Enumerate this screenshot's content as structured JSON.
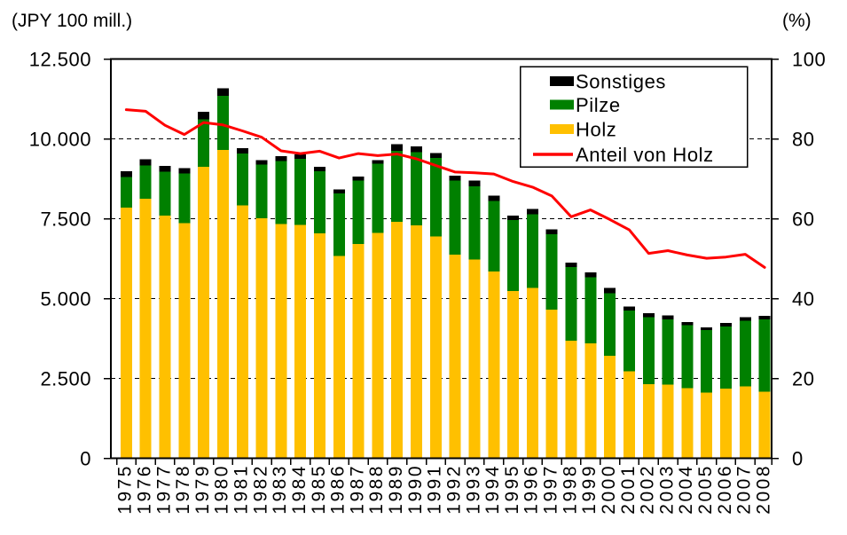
{
  "chart_data": {
    "type": "bar",
    "subtype": "stacked-bars-with-line-overlay",
    "title": "",
    "categories": [
      "1975",
      "1976",
      "1977",
      "1978",
      "1979",
      "1980",
      "1981",
      "1982",
      "1983",
      "1984",
      "1985",
      "1986",
      "1987",
      "1988",
      "1989",
      "1990",
      "1991",
      "1992",
      "1993",
      "1994",
      "1995",
      "1996",
      "1997",
      "1998",
      "1999",
      "2000",
      "2001",
      "2002",
      "2003",
      "2004",
      "2005",
      "2006",
      "2007",
      "2008"
    ],
    "series": [
      {
        "name": "Holz",
        "type": "bar",
        "stacked": true,
        "yaxis": "left",
        "color": "#FFC000",
        "values": [
          7850,
          8130,
          7600,
          7360,
          9120,
          9650,
          7920,
          7520,
          7330,
          7300,
          7040,
          6340,
          6710,
          7060,
          7400,
          7290,
          6940,
          6370,
          6220,
          5850,
          5230,
          5340,
          4650,
          3680,
          3600,
          3210,
          2720,
          2320,
          2310,
          2200,
          2060,
          2180,
          2250,
          2080
        ]
      },
      {
        "name": "Pilze",
        "type": "bar",
        "stacked": true,
        "yaxis": "left",
        "color": "#008000",
        "values": [
          950,
          1030,
          1370,
          1550,
          1490,
          1700,
          1620,
          1680,
          1980,
          2070,
          1950,
          1950,
          1980,
          2160,
          2230,
          2300,
          2460,
          2320,
          2300,
          2210,
          2230,
          2300,
          2370,
          2300,
          2060,
          1960,
          1910,
          2100,
          2040,
          1970,
          1950,
          1940,
          2060,
          2270
        ]
      },
      {
        "name": "Sonstiges",
        "type": "bar",
        "stacked": true,
        "yaxis": "left",
        "color": "#000000",
        "values": [
          190,
          200,
          180,
          170,
          240,
          230,
          170,
          140,
          150,
          150,
          140,
          120,
          130,
          120,
          200,
          180,
          160,
          160,
          170,
          160,
          140,
          160,
          140,
          140,
          160,
          170,
          120,
          120,
          120,
          100,
          90,
          110,
          110,
          110
        ]
      },
      {
        "name": "Anteil von Holz",
        "type": "line",
        "yaxis": "right",
        "color": "#FF0000",
        "values": [
          87.3,
          86.9,
          83.4,
          81.1,
          84.1,
          83.5,
          82.0,
          80.4,
          77.0,
          76.3,
          76.9,
          75.2,
          76.3,
          75.8,
          76.2,
          75.0,
          73.3,
          71.7,
          71.5,
          71.2,
          69.3,
          67.9,
          65.7,
          60.5,
          62.2,
          59.8,
          57.2,
          51.3,
          52.0,
          50.9,
          50.1,
          50.4,
          51.1,
          47.8
        ]
      }
    ],
    "left_axis": {
      "title": "(JPY 100 mill.)",
      "min": 0,
      "max": 12500,
      "ticks": [
        0,
        2500,
        5000,
        7500,
        10000,
        12500
      ],
      "tick_labels": [
        "0",
        "2.500",
        "5.000",
        "7.500",
        "10.000",
        "12.500"
      ]
    },
    "right_axis": {
      "title": "(%)",
      "min": 0,
      "max": 100,
      "ticks": [
        0,
        20,
        40,
        60,
        80,
        100
      ],
      "tick_labels": [
        "0",
        "20",
        "40",
        "60",
        "80",
        "100"
      ]
    },
    "grid": {
      "horizontal": true,
      "style": "dashed",
      "at_left_values": [
        2500,
        5000,
        7500,
        10000
      ]
    },
    "legend": {
      "position": "inside-top-right",
      "border": "#000000",
      "background": "#ffffff",
      "items": [
        {
          "label": "Sonstiges",
          "swatch": "bar",
          "color": "#000000"
        },
        {
          "label": "Pilze",
          "swatch": "bar",
          "color": "#008000"
        },
        {
          "label": "Holz",
          "swatch": "bar",
          "color": "#FFC000"
        },
        {
          "label": "Anteil von Holz",
          "swatch": "line",
          "color": "#FF0000"
        }
      ]
    },
    "colors": {
      "holz": "#FFC000",
      "pilze": "#008000",
      "sonstiges": "#000000",
      "anteil_line": "#FF0000",
      "axis": "#000000",
      "background": "#FFFFFF"
    }
  }
}
